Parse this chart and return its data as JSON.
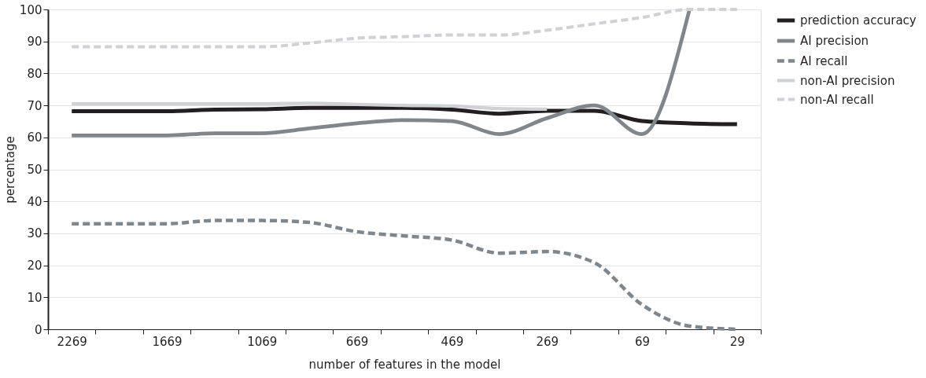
{
  "chart_data": {
    "type": "line",
    "xlabel": "number of features in the model",
    "ylabel": "percentage",
    "categories": [
      "2269",
      null,
      "1669",
      null,
      "1069",
      null,
      "669",
      null,
      "469",
      null,
      "269",
      null,
      "69",
      null,
      "29"
    ],
    "ylim": [
      0,
      100
    ],
    "yticks": [
      0,
      10,
      20,
      30,
      40,
      50,
      60,
      70,
      80,
      90,
      100
    ],
    "grid": "y",
    "legend": "right",
    "series": [
      {
        "name": "prediction accuracy",
        "color": "#231f20",
        "line_style": "solid",
        "values": [
          68.2,
          68.2,
          68.2,
          68.7,
          68.8,
          69.2,
          69.2,
          69.2,
          68.7,
          67.4,
          68.3,
          68.3,
          65.1,
          64.4,
          64.1
        ]
      },
      {
        "name": "AI precision",
        "color": "#80878c",
        "line_style": "solid",
        "values": [
          60.6,
          60.6,
          60.6,
          61.3,
          61.3,
          62.8,
          64.4,
          65.4,
          65.1,
          61,
          66,
          70,
          61,
          100,
          null
        ]
      },
      {
        "name": "AI recall",
        "color": "#80878c",
        "line_style": "dashed",
        "values": [
          33,
          33,
          33,
          34,
          34,
          33.4,
          30.5,
          29.2,
          27.9,
          23.8,
          24.3,
          20.8,
          7.7,
          1,
          0
        ]
      },
      {
        "name": "non-AI precision",
        "color": "#cfd1d4",
        "line_style": "solid",
        "values": [
          70.5,
          70.5,
          70.5,
          70.5,
          70.5,
          70.7,
          70.3,
          70,
          69.8,
          69,
          68.8,
          null,
          null,
          null,
          null
        ]
      },
      {
        "name": "non-AI recall",
        "color": "#cfd1d4",
        "line_style": "dashed",
        "values": [
          88.3,
          88.3,
          88.3,
          88.3,
          88.3,
          89.5,
          91,
          91.5,
          92,
          92,
          93.5,
          95.5,
          97.5,
          100,
          100
        ]
      }
    ]
  }
}
